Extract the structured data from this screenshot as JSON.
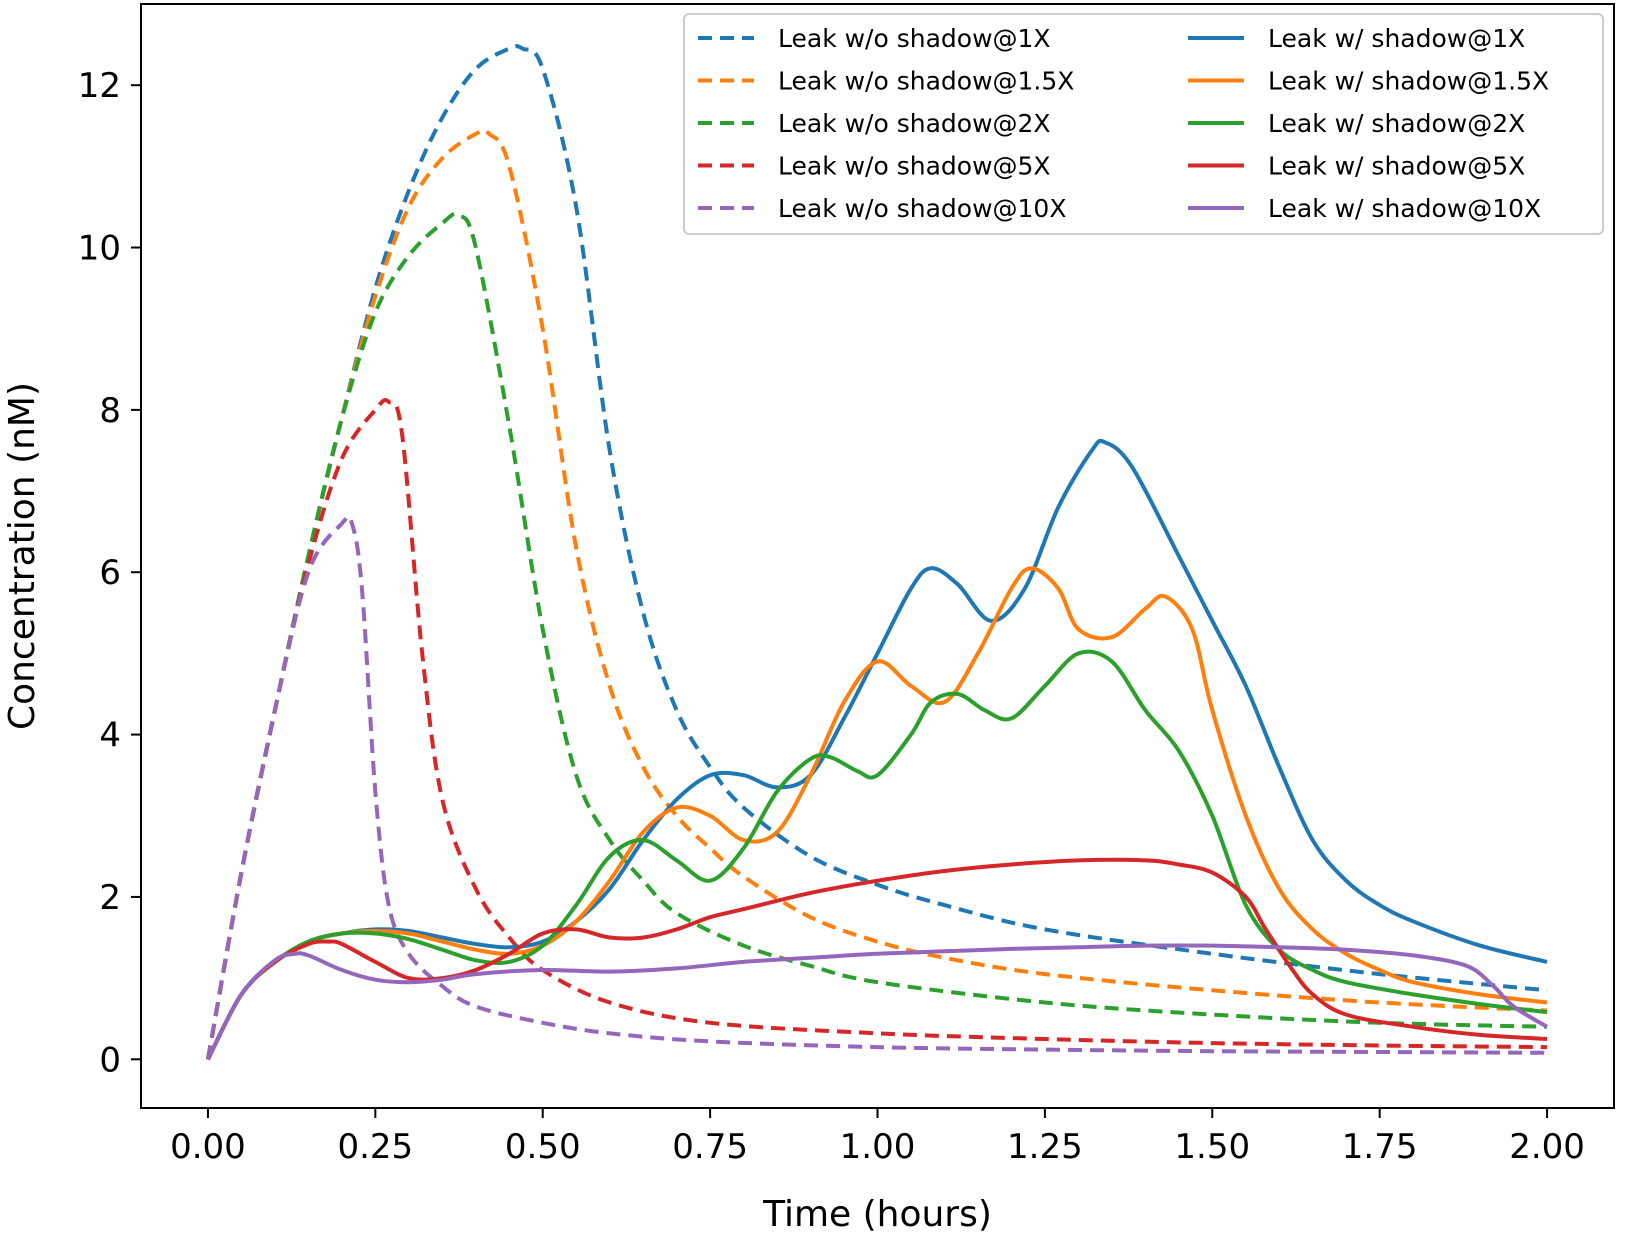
{
  "chart_data": {
    "type": "line",
    "title": "",
    "xlabel": "Time (hours)",
    "ylabel": "Concentration (nM)",
    "xlim": [
      -0.1,
      2.1
    ],
    "ylim": [
      -0.6,
      13.0
    ],
    "xticks": [
      0.0,
      0.25,
      0.5,
      0.75,
      1.0,
      1.25,
      1.5,
      1.75,
      2.0
    ],
    "xtick_labels": [
      "0.00",
      "0.25",
      "0.50",
      "0.75",
      "1.00",
      "1.25",
      "1.50",
      "1.75",
      "2.00"
    ],
    "yticks": [
      0,
      2,
      4,
      6,
      8,
      10,
      12
    ],
    "ytick_labels": [
      "0",
      "2",
      "4",
      "6",
      "8",
      "10",
      "12"
    ],
    "grid": false,
    "legend_position": "top-right",
    "series": [
      {
        "name": "Leak w/o shadow@1X",
        "color": "#1f77b4",
        "dash": "dashed",
        "x": [
          0,
          0.05,
          0.1,
          0.15,
          0.2,
          0.25,
          0.3,
          0.35,
          0.4,
          0.45,
          0.47,
          0.5,
          0.55,
          0.6,
          0.65,
          0.7,
          0.75,
          0.8,
          0.9,
          1.0,
          1.1,
          1.25,
          1.5,
          1.75,
          2.0
        ],
        "y": [
          0,
          2.3,
          4.3,
          6.2,
          7.9,
          9.5,
          10.7,
          11.6,
          12.2,
          12.45,
          12.45,
          12.2,
          10.5,
          7.5,
          5.5,
          4.3,
          3.6,
          3.1,
          2.5,
          2.15,
          1.9,
          1.6,
          1.3,
          1.05,
          0.85
        ]
      },
      {
        "name": "Leak w/o shadow@1.5X",
        "color": "#ff7f0e",
        "dash": "dashed",
        "x": [
          0,
          0.05,
          0.1,
          0.15,
          0.2,
          0.25,
          0.3,
          0.35,
          0.4,
          0.42,
          0.45,
          0.5,
          0.55,
          0.6,
          0.65,
          0.7,
          0.75,
          0.8,
          0.9,
          1.0,
          1.1,
          1.25,
          1.5,
          1.75,
          2.0
        ],
        "y": [
          0,
          2.3,
          4.3,
          6.2,
          7.9,
          9.4,
          10.5,
          11.1,
          11.4,
          11.4,
          11.0,
          9.0,
          6.3,
          4.6,
          3.6,
          3.0,
          2.6,
          2.25,
          1.75,
          1.45,
          1.25,
          1.05,
          0.85,
          0.7,
          0.6
        ]
      },
      {
        "name": "Leak w/o shadow@2X",
        "color": "#2ca02c",
        "dash": "dashed",
        "x": [
          0,
          0.05,
          0.1,
          0.15,
          0.2,
          0.25,
          0.3,
          0.35,
          0.375,
          0.4,
          0.45,
          0.5,
          0.55,
          0.6,
          0.65,
          0.7,
          0.8,
          0.9,
          1.0,
          1.25,
          1.5,
          1.75,
          2.0
        ],
        "y": [
          0,
          2.3,
          4.3,
          6.2,
          7.9,
          9.2,
          9.9,
          10.3,
          10.4,
          10.0,
          7.8,
          5.3,
          3.5,
          2.7,
          2.2,
          1.8,
          1.4,
          1.15,
          0.95,
          0.7,
          0.55,
          0.45,
          0.4
        ]
      },
      {
        "name": "Leak w/o shadow@5X",
        "color": "#d62728",
        "dash": "dashed",
        "x": [
          0,
          0.05,
          0.1,
          0.15,
          0.2,
          0.25,
          0.27,
          0.29,
          0.32,
          0.35,
          0.4,
          0.45,
          0.5,
          0.6,
          0.75,
          1.0,
          1.25,
          1.5,
          1.75,
          2.0
        ],
        "y": [
          0,
          2.3,
          4.3,
          6.1,
          7.4,
          8.0,
          8.1,
          7.7,
          5.0,
          3.2,
          2.1,
          1.5,
          1.1,
          0.7,
          0.45,
          0.32,
          0.25,
          0.2,
          0.17,
          0.15
        ]
      },
      {
        "name": "Leak w/o shadow@10X",
        "color": "#9467bd",
        "dash": "dashed",
        "x": [
          0,
          0.05,
          0.1,
          0.15,
          0.2,
          0.215,
          0.23,
          0.25,
          0.27,
          0.3,
          0.35,
          0.4,
          0.5,
          0.6,
          0.75,
          1.0,
          1.25,
          1.5,
          1.75,
          2.0
        ],
        "y": [
          0,
          2.3,
          4.3,
          6.0,
          6.6,
          6.6,
          5.8,
          3.3,
          1.9,
          1.3,
          0.9,
          0.65,
          0.45,
          0.32,
          0.22,
          0.15,
          0.12,
          0.1,
          0.09,
          0.08
        ]
      },
      {
        "name": "Leak w/ shadow@1X",
        "color": "#1f77b4",
        "dash": "solid",
        "x": [
          0,
          0.05,
          0.1,
          0.15,
          0.2,
          0.25,
          0.3,
          0.35,
          0.4,
          0.45,
          0.5,
          0.55,
          0.6,
          0.65,
          0.7,
          0.75,
          0.8,
          0.85,
          0.9,
          0.95,
          1.0,
          1.05,
          1.08,
          1.12,
          1.17,
          1.22,
          1.27,
          1.32,
          1.34,
          1.38,
          1.45,
          1.5,
          1.55,
          1.6,
          1.65,
          1.7,
          1.75,
          1.8,
          1.9,
          2.0
        ],
        "y": [
          0,
          0.8,
          1.2,
          1.45,
          1.55,
          1.6,
          1.58,
          1.5,
          1.42,
          1.38,
          1.45,
          1.7,
          2.1,
          2.7,
          3.2,
          3.5,
          3.5,
          3.35,
          3.5,
          4.2,
          5.0,
          5.8,
          6.05,
          5.85,
          5.4,
          5.8,
          6.8,
          7.5,
          7.6,
          7.3,
          6.2,
          5.4,
          4.6,
          3.6,
          2.7,
          2.2,
          1.9,
          1.7,
          1.4,
          1.2
        ]
      },
      {
        "name": "Leak w/ shadow@1.5X",
        "color": "#ff7f0e",
        "dash": "solid",
        "x": [
          0,
          0.05,
          0.1,
          0.15,
          0.2,
          0.25,
          0.3,
          0.35,
          0.4,
          0.45,
          0.5,
          0.55,
          0.6,
          0.65,
          0.7,
          0.75,
          0.8,
          0.85,
          0.9,
          0.95,
          1.0,
          1.05,
          1.1,
          1.15,
          1.2,
          1.23,
          1.27,
          1.3,
          1.35,
          1.4,
          1.43,
          1.47,
          1.5,
          1.55,
          1.6,
          1.65,
          1.7,
          1.75,
          1.8,
          1.9,
          2.0
        ],
        "y": [
          0,
          0.8,
          1.2,
          1.45,
          1.55,
          1.58,
          1.55,
          1.45,
          1.35,
          1.3,
          1.4,
          1.7,
          2.2,
          2.8,
          3.1,
          3.0,
          2.7,
          2.8,
          3.5,
          4.4,
          4.9,
          4.6,
          4.4,
          5.0,
          5.8,
          6.05,
          5.8,
          5.3,
          5.2,
          5.55,
          5.7,
          5.3,
          4.3,
          3.0,
          2.1,
          1.6,
          1.3,
          1.1,
          0.95,
          0.8,
          0.7
        ]
      },
      {
        "name": "Leak w/ shadow@2X",
        "color": "#2ca02c",
        "dash": "solid",
        "x": [
          0,
          0.05,
          0.1,
          0.15,
          0.2,
          0.25,
          0.3,
          0.35,
          0.4,
          0.45,
          0.5,
          0.55,
          0.6,
          0.65,
          0.7,
          0.75,
          0.8,
          0.85,
          0.9,
          0.93,
          0.97,
          1.0,
          1.05,
          1.08,
          1.12,
          1.16,
          1.2,
          1.25,
          1.3,
          1.35,
          1.4,
          1.45,
          1.5,
          1.55,
          1.6,
          1.65,
          1.7,
          1.8,
          1.9,
          2.0
        ],
        "y": [
          0,
          0.8,
          1.2,
          1.45,
          1.55,
          1.55,
          1.48,
          1.35,
          1.22,
          1.2,
          1.4,
          1.9,
          2.5,
          2.7,
          2.45,
          2.2,
          2.6,
          3.3,
          3.7,
          3.72,
          3.55,
          3.5,
          4.0,
          4.4,
          4.5,
          4.3,
          4.2,
          4.6,
          5.0,
          4.9,
          4.3,
          3.8,
          3.0,
          1.9,
          1.35,
          1.1,
          0.95,
          0.8,
          0.68,
          0.58
        ]
      },
      {
        "name": "Leak w/ shadow@5X",
        "color": "#d62728",
        "dash": "solid",
        "x": [
          0,
          0.05,
          0.1,
          0.15,
          0.18,
          0.2,
          0.25,
          0.3,
          0.35,
          0.4,
          0.45,
          0.5,
          0.55,
          0.6,
          0.65,
          0.7,
          0.75,
          0.8,
          0.9,
          1.0,
          1.1,
          1.2,
          1.3,
          1.4,
          1.45,
          1.5,
          1.55,
          1.58,
          1.62,
          1.65,
          1.7,
          1.8,
          1.9,
          2.0
        ],
        "y": [
          0,
          0.8,
          1.2,
          1.42,
          1.45,
          1.42,
          1.2,
          1.0,
          1.0,
          1.1,
          1.3,
          1.55,
          1.6,
          1.5,
          1.5,
          1.6,
          1.75,
          1.85,
          2.05,
          2.2,
          2.32,
          2.4,
          2.45,
          2.45,
          2.4,
          2.3,
          2.0,
          1.6,
          1.1,
          0.8,
          0.55,
          0.4,
          0.3,
          0.25
        ]
      },
      {
        "name": "Leak w/ shadow@10X",
        "color": "#9467bd",
        "dash": "solid",
        "x": [
          0,
          0.05,
          0.1,
          0.13,
          0.15,
          0.2,
          0.25,
          0.3,
          0.35,
          0.4,
          0.5,
          0.6,
          0.7,
          0.8,
          0.9,
          1.0,
          1.1,
          1.2,
          1.3,
          1.4,
          1.5,
          1.6,
          1.7,
          1.8,
          1.88,
          1.92,
          1.95,
          2.0
        ],
        "y": [
          0,
          0.8,
          1.22,
          1.3,
          1.28,
          1.1,
          0.98,
          0.95,
          0.98,
          1.05,
          1.1,
          1.08,
          1.12,
          1.2,
          1.25,
          1.3,
          1.33,
          1.36,
          1.38,
          1.4,
          1.4,
          1.38,
          1.35,
          1.28,
          1.15,
          0.9,
          0.65,
          0.4
        ]
      }
    ]
  }
}
